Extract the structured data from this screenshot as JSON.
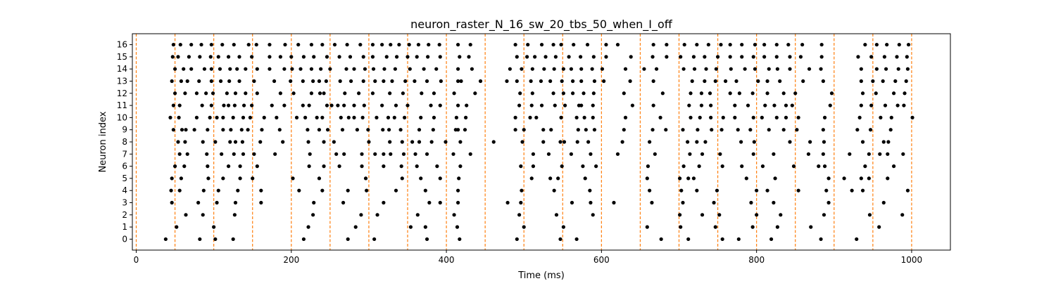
{
  "chart_data": {
    "type": "scatter",
    "title": "neuron_raster_N_16_sw_20_tbs_50_when_I_off",
    "xlabel": "Time (ms)",
    "ylabel": "Neuron index",
    "xlim": [
      -5,
      1050
    ],
    "ylim": [
      -0.9,
      16.9
    ],
    "x_ticks": [
      0,
      200,
      400,
      600,
      800,
      1000
    ],
    "y_ticks": [
      0,
      1,
      2,
      3,
      4,
      5,
      6,
      7,
      8,
      9,
      10,
      11,
      12,
      13,
      14,
      15,
      16
    ],
    "vlines": [
      0,
      50,
      100,
      150,
      200,
      250,
      300,
      350,
      400,
      450,
      500,
      550,
      600,
      650,
      700,
      750,
      800,
      850,
      900,
      950,
      1000
    ],
    "vline_color": "#ff7f0e",
    "marker_color": "#000000",
    "grid": false,
    "legend": "none",
    "series": [
      {
        "neuron": 0,
        "spike_times": [
          38,
          82,
          102,
          125,
          216,
          273,
          307,
          375,
          417,
          491,
          547,
          568,
          677,
          712,
          756,
          777,
          819,
          883,
          929
        ]
      },
      {
        "neuron": 1,
        "spike_times": [
          52,
          100,
          222,
          283,
          354,
          373,
          414,
          500,
          551,
          659,
          702,
          747,
          795,
          827,
          870,
          958
        ]
      },
      {
        "neuron": 2,
        "spike_times": [
          64,
          86,
          127,
          228,
          290,
          311,
          363,
          410,
          494,
          542,
          589,
          701,
          730,
          752,
          800,
          831,
          887,
          946,
          988
        ]
      },
      {
        "neuron": 3,
        "spike_times": [
          46,
          80,
          104,
          128,
          161,
          229,
          267,
          319,
          378,
          392,
          415,
          479,
          496,
          562,
          586,
          616,
          665,
          705,
          745,
          793,
          822,
          893,
          964
        ]
      },
      {
        "neuron": 4,
        "spike_times": [
          45,
          56,
          87,
          106,
          131,
          161,
          210,
          240,
          273,
          297,
          335,
          373,
          415,
          497,
          539,
          585,
          662,
          703,
          723,
          749,
          800,
          814,
          854,
          890,
          923,
          937,
          995
        ]
      },
      {
        "neuron": 5,
        "spike_times": [
          46,
          58,
          93,
          112,
          134,
          150,
          202,
          236,
          296,
          343,
          367,
          392,
          416,
          510,
          534,
          544,
          579,
          659,
          701,
          712,
          719,
          787,
          824,
          893,
          913,
          935,
          945,
          969
        ]
      },
      {
        "neuron": 6,
        "spike_times": [
          50,
          62,
          92,
          119,
          134,
          156,
          223,
          242,
          262,
          291,
          319,
          342,
          362,
          388,
          418,
          496,
          512,
          549,
          576,
          593,
          660,
          706,
          726,
          756,
          781,
          808,
          848,
          880,
          888,
          940,
          977
        ]
      },
      {
        "neuron": 7,
        "spike_times": [
          56,
          66,
          91,
          110,
          126,
          138,
          152,
          179,
          224,
          258,
          268,
          291,
          308,
          319,
          328,
          345,
          360,
          375,
          409,
          431,
          512,
          532,
          561,
          586,
          621,
          669,
          714,
          730,
          753,
          796,
          822,
          867,
          886,
          920,
          945,
          959,
          969,
          989
        ]
      },
      {
        "neuron": 8,
        "spike_times": [
          54,
          63,
          86,
          102,
          121,
          128,
          137,
          160,
          189,
          222,
          242,
          255,
          300,
          327,
          343,
          356,
          365,
          381,
          399,
          418,
          461,
          498,
          525,
          547,
          552,
          569,
          583,
          627,
          662,
          711,
          723,
          734,
          780,
          797,
          843,
          869,
          887,
          937,
          964,
          970
        ]
      },
      {
        "neuron": 9,
        "spike_times": [
          48,
          59,
          64,
          75,
          92,
          112,
          122,
          136,
          144,
          162,
          185,
          221,
          236,
          247,
          266,
          285,
          299,
          318,
          326,
          341,
          365,
          383,
          412,
          415,
          424,
          489,
          500,
          525,
          535,
          570,
          580,
          591,
          629,
          666,
          683,
          705,
          724,
          742,
          755,
          776,
          792,
          816,
          835,
          852,
          886,
          930,
          947,
          973
        ]
      },
      {
        "neuron": 10,
        "spike_times": [
          44,
          55,
          78,
          95,
          104,
          112,
          125,
          138,
          147,
          165,
          181,
          207,
          218,
          233,
          240,
          264,
          274,
          281,
          292,
          310,
          325,
          333,
          346,
          367,
          384,
          413,
          425,
          489,
          508,
          516,
          548,
          568,
          578,
          589,
          631,
          676,
          715,
          727,
          741,
          757,
          772,
          796,
          807,
          826,
          838,
          854,
          888,
          933,
          960,
          974,
          1001
        ]
      },
      {
        "neuron": 11,
        "spike_times": [
          48,
          56,
          85,
          97,
          113,
          119,
          127,
          139,
          149,
          175,
          191,
          215,
          223,
          246,
          252,
          260,
          268,
          281,
          294,
          317,
          335,
          350,
          380,
          392,
          415,
          426,
          494,
          510,
          523,
          540,
          553,
          571,
          574,
          589,
          640,
          667,
          713,
          729,
          741,
          772,
          789,
          811,
          823,
          838,
          846,
          895,
          935,
          948,
          966,
          982,
          990
        ]
      },
      {
        "neuron": 12,
        "spike_times": [
          50,
          63,
          78,
          90,
          99,
          117,
          128,
          141,
          156,
          186,
          203,
          226,
          237,
          242,
          269,
          287,
          305,
          327,
          344,
          368,
          384,
          410,
          437,
          495,
          511,
          538,
          551,
          563,
          577,
          590,
          629,
          679,
          715,
          729,
          740,
          766,
          778,
          795,
          814,
          835,
          850,
          897,
          937,
          954,
          977,
          991
        ]
      },
      {
        "neuron": 13,
        "spike_times": [
          46,
          58,
          66,
          81,
          97,
          109,
          120,
          133,
          152,
          178,
          199,
          215,
          228,
          236,
          245,
          263,
          277,
          293,
          308,
          319,
          330,
          347,
          359,
          375,
          393,
          415,
          419,
          444,
          478,
          491,
          509,
          522,
          534,
          549,
          563,
          574,
          591,
          603,
          637,
          667,
          717,
          733,
          747,
          760,
          774,
          802,
          814,
          830,
          860,
          886,
          935,
          950,
          963,
          979,
          993
        ]
      },
      {
        "neuron": 14,
        "spike_times": [
          50,
          61,
          71,
          88,
          97,
          108,
          121,
          130,
          141,
          156,
          172,
          191,
          201,
          212,
          226,
          238,
          250,
          271,
          281,
          295,
          306,
          320,
          334,
          353,
          371,
          387,
          415,
          433,
          482,
          497,
          511,
          526,
          539,
          551,
          561,
          574,
          588,
          601,
          631,
          655,
          671,
          706,
          720,
          735,
          748,
          767,
          785,
          798,
          816,
          827,
          843,
          868,
          883,
          935,
          955,
          967,
          983,
          995
        ]
      },
      {
        "neuron": 15,
        "spike_times": [
          47,
          54,
          68,
          82,
          96,
          106,
          119,
          133,
          149,
          172,
          186,
          200,
          216,
          229,
          246,
          262,
          276,
          293,
          305,
          323,
          336,
          350,
          362,
          376,
          392,
          417,
          429,
          491,
          504,
          514,
          528,
          541,
          558,
          573,
          590,
          606,
          638,
          666,
          684,
          702,
          719,
          733,
          750,
          766,
          781,
          796,
          810,
          826,
          843,
          857,
          884,
          931,
          948,
          965,
          981,
          994
        ]
      },
      {
        "neuron": 16,
        "spike_times": [
          48,
          57,
          71,
          84,
          97,
          111,
          126,
          145,
          155,
          172,
          192,
          209,
          226,
          240,
          256,
          272,
          289,
          305,
          317,
          328,
          339,
          352,
          364,
          377,
          391,
          415,
          431,
          489,
          505,
          523,
          538,
          548,
          564,
          582,
          606,
          621,
          667,
          684,
          707,
          723,
          738,
          754,
          766,
          781,
          798,
          810,
          826,
          841,
          859,
          884,
          940,
          955,
          968,
          984,
          996
        ]
      }
    ]
  }
}
